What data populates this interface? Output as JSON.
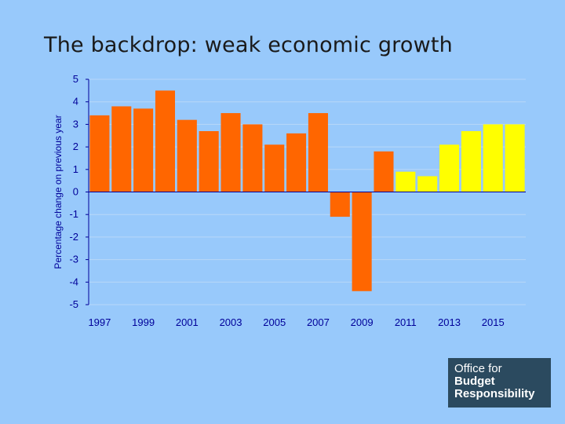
{
  "slide": {
    "title": "The backdrop: weak economic growth"
  },
  "logo": {
    "line1": "Office for",
    "line2": "Budget",
    "line3": "Responsibility"
  },
  "colors": {
    "background": "#98c9fb",
    "outturn": "#ff6600",
    "forecast": "#ffff00",
    "axis": "#000099"
  },
  "chart_data": {
    "type": "bar",
    "title": "",
    "xlabel": "",
    "ylabel": "Percentage change on previous year",
    "ylim": [
      -5,
      5
    ],
    "yticks": [
      5,
      4,
      3,
      2,
      1,
      0,
      -1,
      -2,
      -3,
      -4,
      -5
    ],
    "grid": true,
    "categories": [
      "1997",
      "1998",
      "1999",
      "2000",
      "2001",
      "2002",
      "2003",
      "2004",
      "2005",
      "2006",
      "2007",
      "2008",
      "2009",
      "2010",
      "2011",
      "2012",
      "2013",
      "2014",
      "2015",
      "2016"
    ],
    "xtick_labels": [
      "1997",
      "1999",
      "2001",
      "2003",
      "2005",
      "2007",
      "2009",
      "2011",
      "2013",
      "2015"
    ],
    "values": [
      3.4,
      3.8,
      3.7,
      4.5,
      3.2,
      2.7,
      3.5,
      3.0,
      2.1,
      2.6,
      3.5,
      -1.1,
      -4.4,
      1.8,
      0.9,
      0.7,
      2.1,
      2.7,
      3.0,
      3.0
    ],
    "forecast_from": "2011"
  }
}
